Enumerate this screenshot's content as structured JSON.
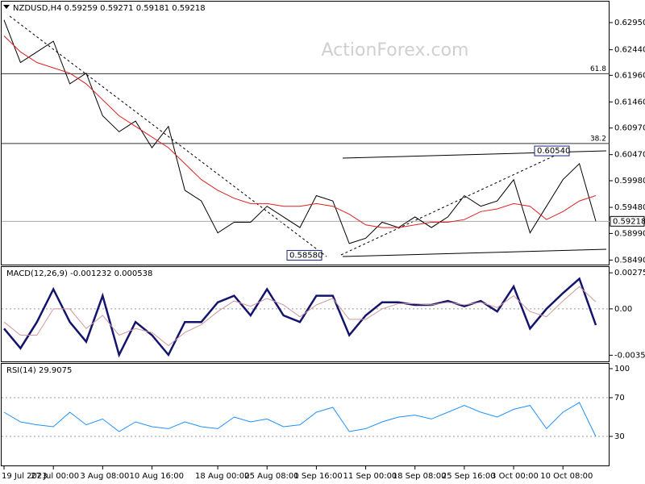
{
  "chart_data": [
    {
      "type": "line",
      "title": "NZDUSD,H4  0.59259 0.59271 0.59181 0.59218",
      "watermark": "ActionForex.com",
      "ylim": [
        0.58405,
        0.63344
      ],
      "yticks": [
        {
          "value": 0.6295,
          "label": "0.62950"
        },
        {
          "value": 0.6244,
          "label": "0.62440"
        },
        {
          "value": 0.6196,
          "label": "0.61960"
        },
        {
          "value": 0.6146,
          "label": "0.61460"
        },
        {
          "value": 0.6097,
          "label": "0.60970"
        },
        {
          "value": 0.6047,
          "label": "0.60470"
        },
        {
          "value": 0.5998,
          "label": "0.59980"
        },
        {
          "value": 0.5948,
          "label": "0.59480"
        },
        {
          "value": 0.5899,
          "label": "0.58990"
        },
        {
          "value": 0.5849,
          "label": "0.58490"
        }
      ],
      "levels": [
        {
          "value": 0.6199,
          "label": "61.8"
        },
        {
          "value": 0.6068,
          "label": "38.2"
        }
      ],
      "last_price": 0.59218,
      "annotations": [
        {
          "value": 0.6054,
          "label": "0.60540"
        },
        {
          "value": 0.5858,
          "label": "0.58580"
        }
      ],
      "series": [
        {
          "name": "NZDUSD",
          "color": "#000000",
          "values": [
            0.63,
            0.622,
            0.624,
            0.626,
            0.618,
            0.62,
            0.612,
            0.609,
            0.611,
            0.606,
            0.61,
            0.598,
            0.596,
            0.59,
            0.592,
            0.592,
            0.595,
            0.593,
            0.591,
            0.597,
            0.596,
            0.588,
            0.589,
            0.592,
            0.591,
            0.593,
            0.591,
            0.593,
            0.597,
            0.595,
            0.596,
            0.6,
            0.59,
            0.595,
            0.6,
            0.603,
            0.59218
          ]
        },
        {
          "name": "MA",
          "color": "#e02020",
          "values": [
            0.627,
            0.624,
            0.622,
            0.621,
            0.62,
            0.618,
            0.615,
            0.612,
            0.61,
            0.608,
            0.606,
            0.603,
            0.6,
            0.598,
            0.5965,
            0.5955,
            0.5955,
            0.595,
            0.595,
            0.5955,
            0.595,
            0.5935,
            0.5915,
            0.591,
            0.591,
            0.5915,
            0.592,
            0.592,
            0.5925,
            0.594,
            0.5945,
            0.5955,
            0.595,
            0.5925,
            0.594,
            0.596,
            0.597
          ]
        }
      ]
    },
    {
      "type": "line",
      "title": "MACD(12,26,9) -0.001232 0.000538",
      "ylim": [
        -0.004,
        0.00319
      ],
      "yticks": [
        0.00275,
        {
          "value": 0,
          "label": "0.00"
        },
        -0.003531
      ],
      "guide_lines": [
        0
      ],
      "series": [
        {
          "name": "MACD",
          "color": "#14146e",
          "values": [
            -0.0015,
            -0.003,
            -0.001,
            0.0015,
            -0.001,
            -0.0025,
            0.001,
            -0.0035,
            -0.001,
            -0.002,
            -0.0035,
            -0.001,
            -0.001,
            0.0005,
            0.001,
            -0.0005,
            0.0015,
            -0.0005,
            -0.001,
            0.001,
            0.001,
            -0.002,
            -0.0005,
            0.0005,
            0.0005,
            0.0003,
            0.0003,
            0.0006,
            0.0002,
            0.0006,
            -0.0002,
            0.0017,
            -0.0015,
            0,
            0.0012,
            0.0023,
            -0.001232
          ]
        },
        {
          "name": "Signal",
          "color": "#d09a9a",
          "values": [
            -0.001,
            -0.002,
            -0.002,
            0,
            0,
            -0.0015,
            -0.0005,
            -0.002,
            -0.0015,
            -0.0018,
            -0.0028,
            -0.0018,
            -0.0012,
            -0.0002,
            0.0006,
            0.0002,
            0.0008,
            0.0003,
            -0.0006,
            0.0003,
            0.0008,
            -0.0008,
            -0.0008,
            0,
            0.0004,
            0.0004,
            0.0003,
            0.0005,
            0.0003,
            0.0005,
            0.0001,
            0.001,
            -0.0002,
            -0.0006,
            0.0006,
            0.0017,
            0.000538
          ]
        }
      ]
    },
    {
      "type": "line",
      "title": "RSI(14) 29.9075",
      "ylim": [
        0,
        105
      ],
      "yticks": [
        100,
        70,
        30
      ],
      "guide_lines": [
        70,
        30
      ],
      "categories": [
        "19 Jul 2023",
        null,
        null,
        "27 Jul 00:00",
        null,
        null,
        "3 Aug 08:00",
        null,
        null,
        "10 Aug 16:00",
        null,
        null,
        null,
        "18 Aug 00:00",
        null,
        null,
        "25 Aug 08:00",
        null,
        null,
        "1 Sep 16:00",
        null,
        null,
        "11 Sep 00:00",
        null,
        null,
        "18 Sep 08:00",
        null,
        null,
        "25 Sep 16:00",
        null,
        null,
        "3 Oct 00:00",
        null,
        null,
        "10 Oct 08:00",
        null,
        null
      ],
      "series": [
        {
          "name": "RSI",
          "color": "#1e90ff",
          "values": [
            55,
            45,
            42,
            40,
            55,
            42,
            48,
            35,
            45,
            40,
            38,
            45,
            40,
            38,
            50,
            45,
            48,
            40,
            42,
            55,
            60,
            35,
            38,
            45,
            50,
            52,
            48,
            55,
            62,
            55,
            50,
            58,
            62,
            38,
            55,
            65,
            29.9075
          ]
        }
      ]
    }
  ]
}
